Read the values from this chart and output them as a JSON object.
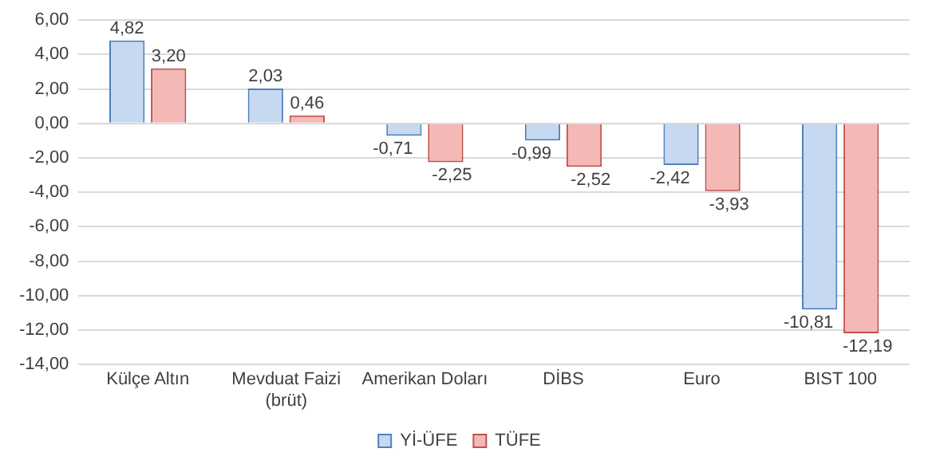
{
  "chart_data": {
    "type": "bar",
    "categories": [
      "Külçe Altın",
      "Mevduat Faizi (brüt)",
      "Amerikan Doları",
      "DİBS",
      "Euro",
      "BIST 100"
    ],
    "series": [
      {
        "name": "Yİ-ÜFE",
        "color": "#c6d9f1",
        "values": [
          4.82,
          2.03,
          -0.71,
          -0.99,
          -2.42,
          -10.81
        ],
        "value_labels": [
          "4,82",
          "2,03",
          "-0,71",
          "-0,99",
          "-2,42",
          "-10,81"
        ]
      },
      {
        "name": "TÜFE",
        "color": "#f4b8b6",
        "values": [
          3.2,
          0.46,
          -2.25,
          -2.52,
          -3.93,
          -12.19
        ],
        "value_labels": [
          "3,20",
          "0,46",
          "-2,25",
          "-2,52",
          "-3,93",
          "-12,19"
        ]
      }
    ],
    "ylim": [
      -14,
      6
    ],
    "yticks": [
      {
        "value": -14,
        "label": "-14,00"
      },
      {
        "value": -12,
        "label": "-12,00"
      },
      {
        "value": -10,
        "label": "-10,00"
      },
      {
        "value": -8,
        "label": "-8,00"
      },
      {
        "value": -6,
        "label": "-6,00"
      },
      {
        "value": -4,
        "label": "-4,00"
      },
      {
        "value": -2,
        "label": "-2,00"
      },
      {
        "value": 0,
        "label": "0,00"
      },
      {
        "value": 2,
        "label": "2,00"
      },
      {
        "value": 4,
        "label": "4,00"
      },
      {
        "value": 6,
        "label": "6,00"
      }
    ],
    "grid": "y",
    "legend": "bottom"
  }
}
